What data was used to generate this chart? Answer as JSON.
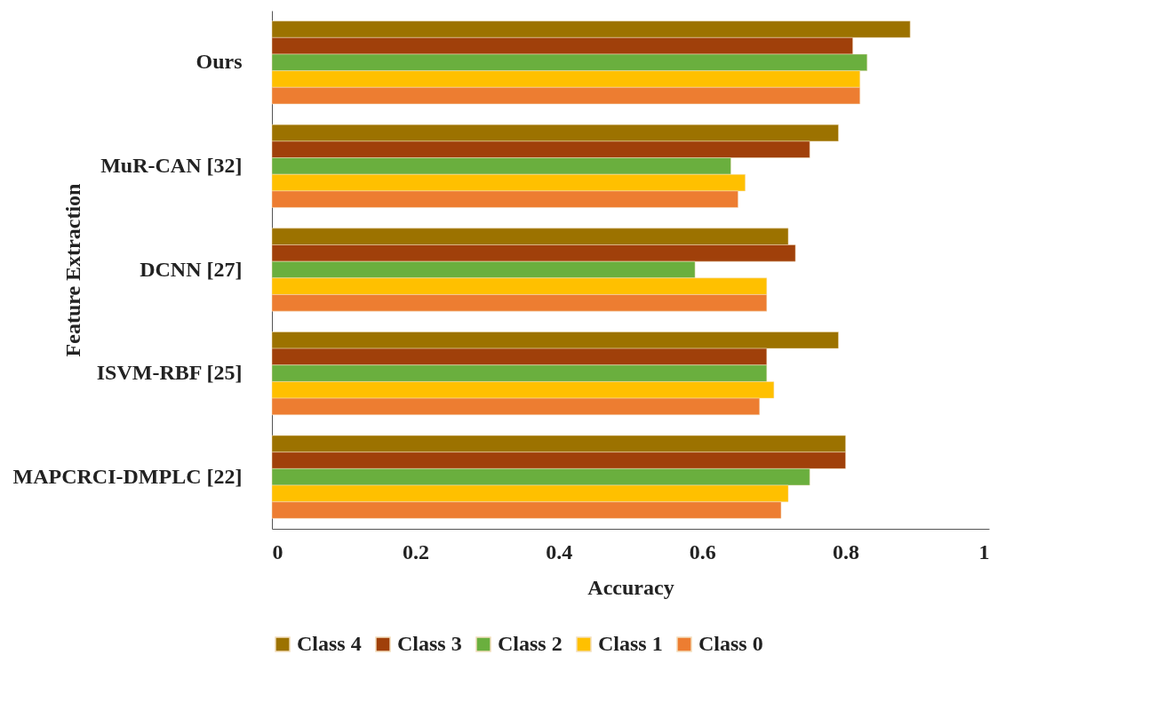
{
  "chart_data": {
    "type": "bar",
    "orientation": "horizontal",
    "xlabel": "Accuracy",
    "ylabel": "Feature Extraction",
    "categories": [
      "Ours",
      "MuR-CAN [32]",
      "DCNN [27]",
      "ISVM-RBF [25]",
      "MAPCRCI-DMPLC [22]"
    ],
    "series": [
      {
        "name": "Class 4",
        "color": "#9c7200",
        "values": [
          0.89,
          0.79,
          0.72,
          0.79,
          0.8
        ]
      },
      {
        "name": "Class 3",
        "color": "#a0400a",
        "values": [
          0.81,
          0.75,
          0.73,
          0.69,
          0.8
        ]
      },
      {
        "name": "Class 2",
        "color": "#6aaf3e",
        "values": [
          0.83,
          0.64,
          0.59,
          0.69,
          0.75
        ]
      },
      {
        "name": "Class 1",
        "color": "#ffc000",
        "values": [
          0.82,
          0.66,
          0.69,
          0.7,
          0.72
        ]
      },
      {
        "name": "Class 0",
        "color": "#ed7d31",
        "values": [
          0.82,
          0.65,
          0.69,
          0.68,
          0.71
        ]
      }
    ],
    "xlim": [
      0,
      1
    ],
    "xticks": [
      0,
      0.2,
      0.4,
      0.6,
      0.8,
      1
    ],
    "grid": false,
    "legend": "bottom"
  }
}
